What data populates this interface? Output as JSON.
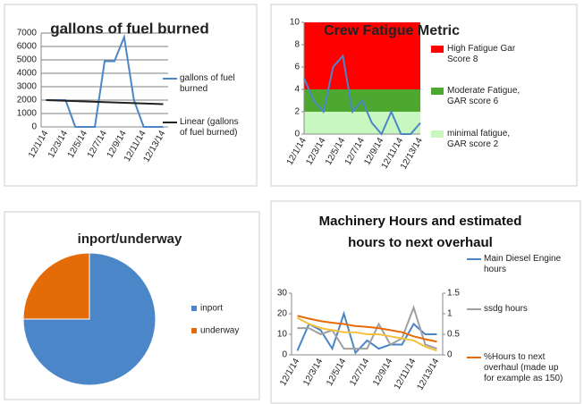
{
  "chart_data": [
    {
      "type": "line",
      "title": "gallons of fuel burned",
      "categories": [
        "12/1/14",
        null,
        "12/3/14",
        null,
        "12/5/14",
        null,
        "12/7/14",
        null,
        "12/9/14",
        null,
        "12/11/14",
        null,
        "12/13/14"
      ],
      "series": [
        {
          "name": "gallons of fuel burned",
          "color": "#4a86c8",
          "values": [
            2000,
            2000,
            2000,
            0,
            0,
            0,
            4900,
            4900,
            6700,
            2000,
            0,
            0,
            0
          ]
        },
        {
          "name": "Linear (gallons of fuel burned)",
          "color": "#222222",
          "values": [
            2000,
            1975,
            1950,
            1925,
            1900,
            1875,
            1850,
            1825,
            1800,
            1775,
            1750,
            1725,
            1700
          ]
        }
      ],
      "ylim": [
        0,
        7000
      ],
      "yticks": [
        0,
        1000,
        2000,
        3000,
        4000,
        5000,
        6000,
        7000
      ],
      "grid": true
    },
    {
      "type": "stacked_area_line",
      "title": "Crew Fatigue Metric",
      "categories": [
        "12/1/14",
        null,
        "12/3/14",
        null,
        "12/5/14",
        null,
        "12/7/14",
        null,
        "12/9/14",
        null,
        "12/11/14",
        null,
        "12/13/14"
      ],
      "areas": [
        {
          "name": "minimal fatigue, GAR score 2",
          "color": "#c8f7c0",
          "values": [
            2,
            2,
            2,
            2,
            2,
            2,
            2,
            2,
            2,
            2,
            2,
            2,
            2
          ]
        },
        {
          "name": "Moderate Fatigue, GAR score 6",
          "color": "#4ea72e",
          "values": [
            2,
            2,
            2,
            2,
            2,
            2,
            2,
            2,
            2,
            2,
            2,
            2,
            2
          ]
        },
        {
          "name": "High Fatigue Gar Score 8",
          "color": "#ff0000",
          "values": [
            6,
            6,
            6,
            6,
            6,
            6,
            6,
            6,
            6,
            6,
            6,
            6,
            6
          ]
        }
      ],
      "series": [
        {
          "color": "#4a86c8",
          "values": [
            5,
            3,
            2,
            6,
            7,
            2,
            3,
            1,
            0,
            2,
            0,
            0,
            1
          ]
        }
      ],
      "ylim": [
        0,
        10
      ],
      "yticks": [
        0,
        2,
        4,
        6,
        8,
        10
      ],
      "grid": false
    },
    {
      "type": "pie",
      "title": "inport/underway",
      "categories": [
        "inport",
        "underway"
      ],
      "values": [
        75,
        25
      ],
      "colors": [
        "#4a86c8",
        "#e36c09"
      ]
    },
    {
      "type": "line",
      "title": "Machinery Hours and estimated hours to next overhaul",
      "categories": [
        "12/1/14",
        null,
        "12/3/14",
        null,
        "12/5/14",
        null,
        "12/7/14",
        null,
        "12/9/14",
        null,
        "12/11/14",
        null,
        "12/13/14"
      ],
      "series": [
        {
          "name": "Main Diesel Engine hours",
          "color": "#4a86c8",
          "values": [
            2,
            15,
            12,
            3,
            20,
            1,
            7,
            3,
            5,
            5,
            15,
            10,
            10
          ]
        },
        {
          "name": "ssdg hours",
          "color": "#a0a0a0",
          "values": [
            13,
            13,
            10,
            12,
            3,
            3,
            3,
            15,
            5,
            8,
            23,
            5,
            3
          ]
        },
        {
          "name": "%Hours to next overhaul (made up for example as 150)",
          "color": "#e36c09",
          "axis": "y2",
          "values": [
            0.95,
            0.88,
            0.82,
            0.78,
            0.75,
            0.7,
            0.68,
            0.65,
            0.6,
            0.55,
            0.45,
            0.38,
            0.32
          ]
        },
        {
          "color": "#f5c03a",
          "values": [
            18,
            15,
            13,
            12,
            11,
            11,
            10,
            10,
            9,
            8,
            7,
            4,
            2
          ]
        }
      ],
      "ylim": [
        0,
        30
      ],
      "yticks": [
        0,
        10,
        20,
        30
      ],
      "y2lim": [
        0,
        1.5
      ],
      "y2ticks": [
        0,
        0.5,
        1,
        1.5
      ],
      "grid": false
    }
  ]
}
